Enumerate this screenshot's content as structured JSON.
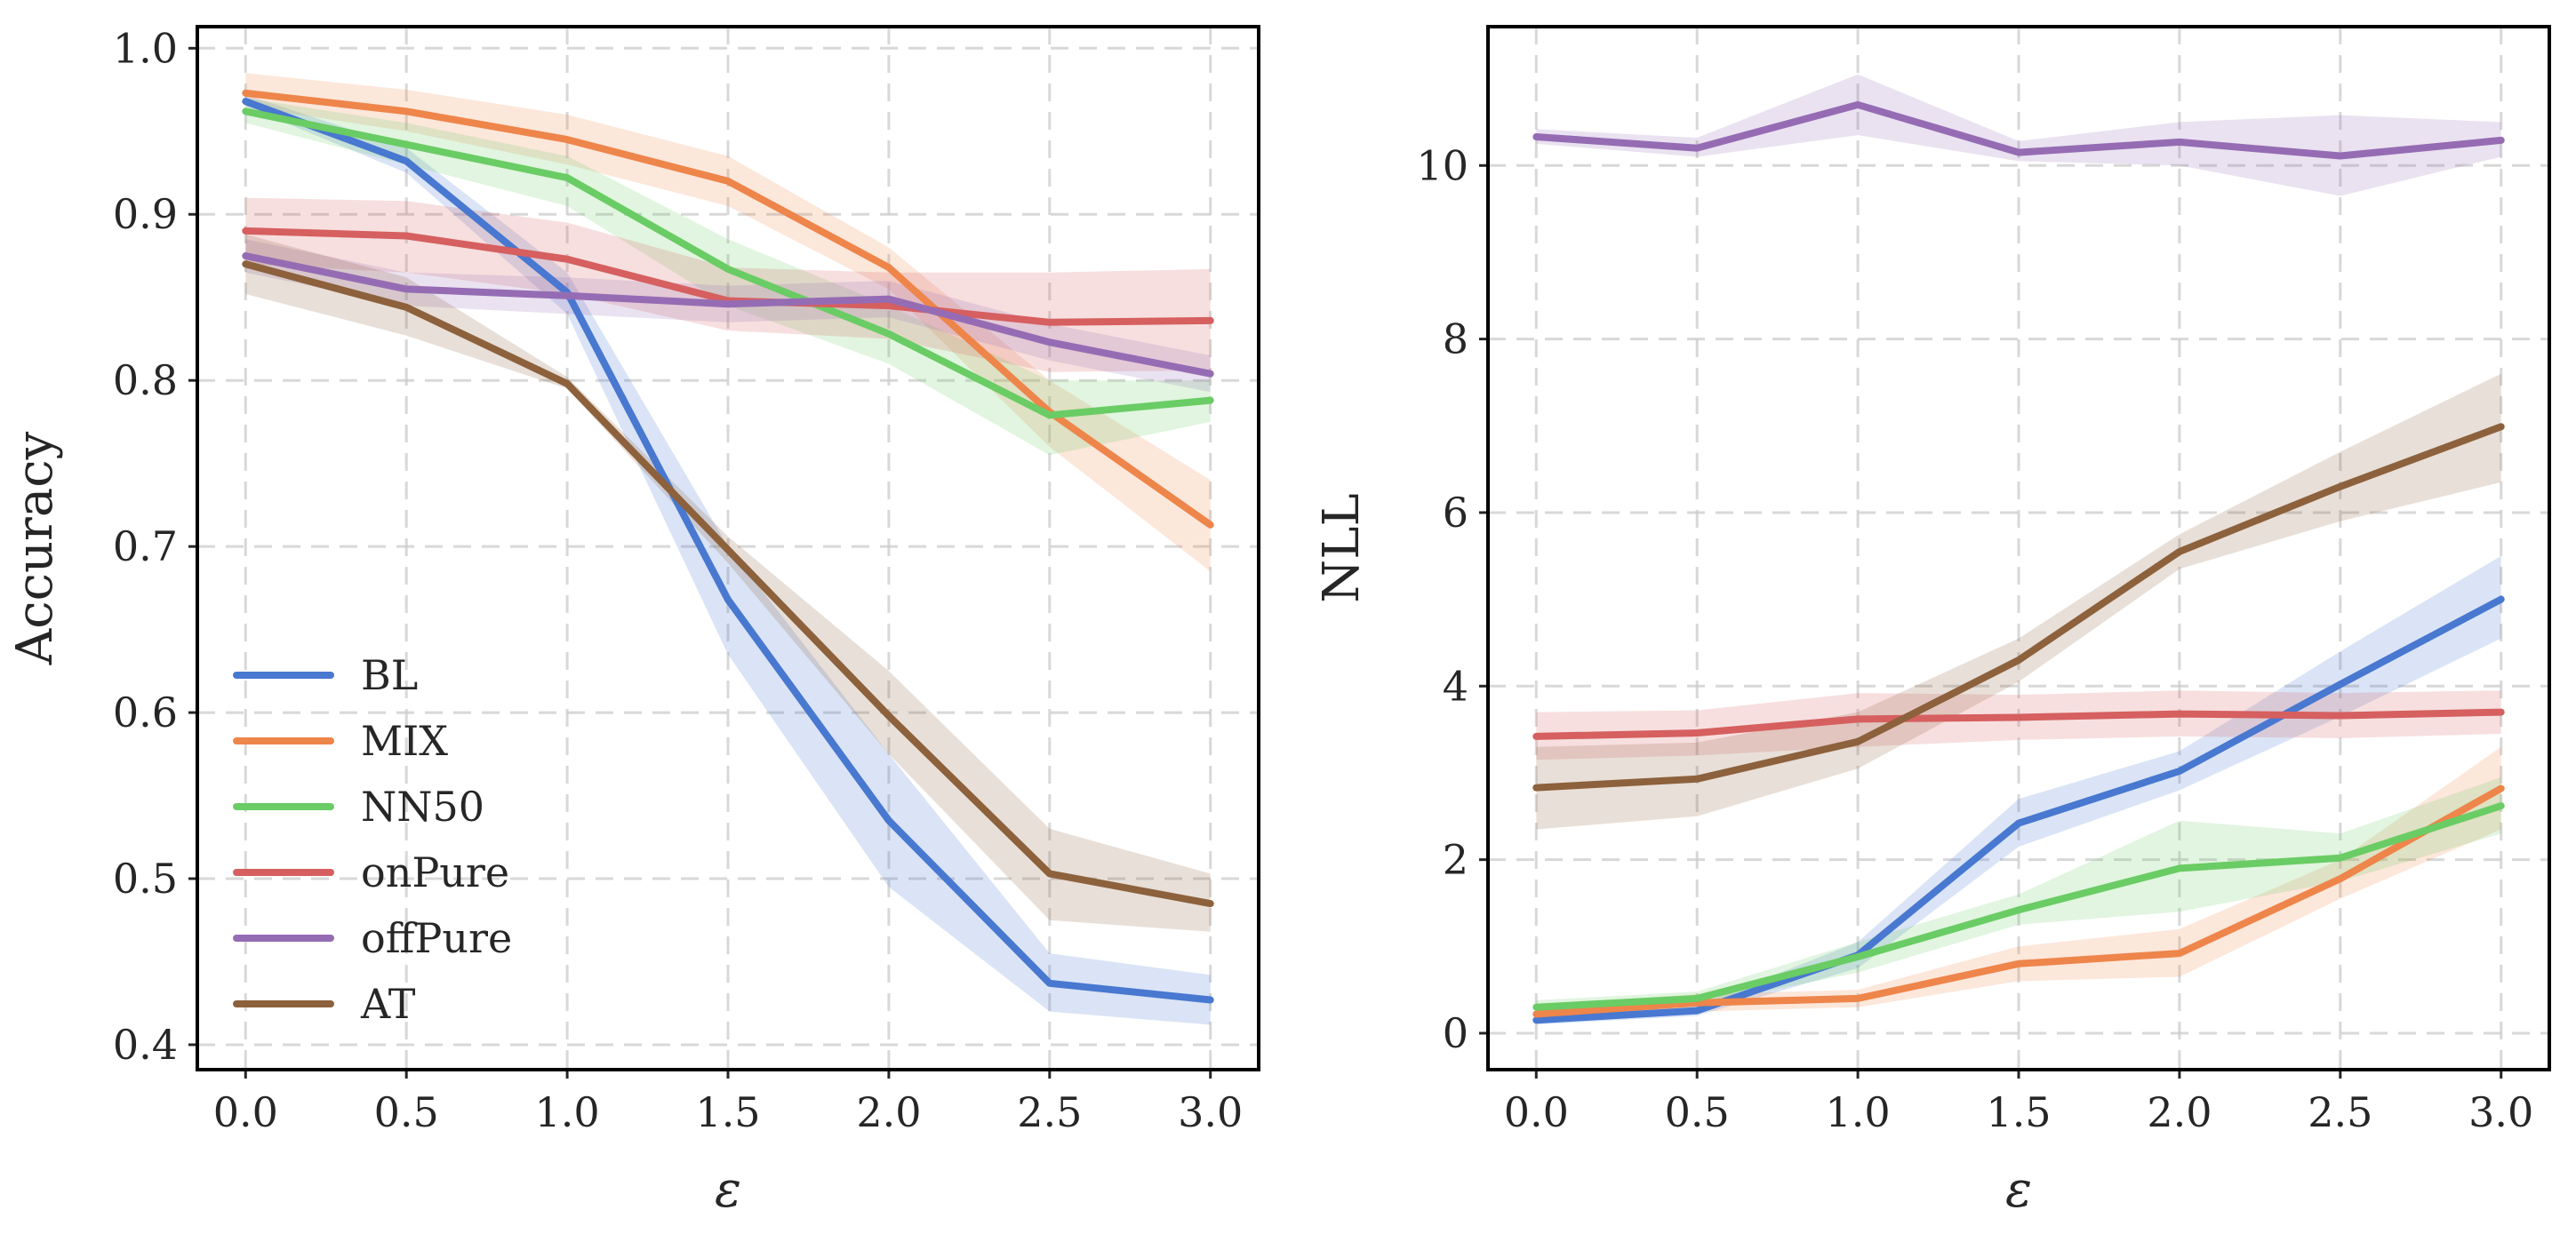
{
  "colors": {
    "BL": "#4878d0",
    "MIX": "#ee854a",
    "NN50": "#6acc64",
    "onPure": "#d65f5f",
    "offPure": "#956cb4",
    "AT": "#8c613c"
  },
  "chart_data": [
    {
      "type": "line",
      "title": "",
      "xlabel": "ε",
      "ylabel": "Accuracy",
      "x": [
        0.0,
        0.5,
        1.0,
        1.5,
        2.0,
        2.5,
        3.0
      ],
      "xticks": [
        "0.0",
        "0.5",
        "1.0",
        "1.5",
        "2.0",
        "2.5",
        "3.0"
      ],
      "yticks": [
        "0.4",
        "0.5",
        "0.6",
        "0.7",
        "0.8",
        "0.9",
        "1.0"
      ],
      "xlim": [
        -0.15,
        3.15
      ],
      "ylim": [
        0.385,
        1.013
      ],
      "grid": true,
      "legend_position": "lower-left",
      "series": [
        {
          "name": "BL",
          "values": [
            0.968,
            0.932,
            0.853,
            0.668,
            0.535,
            0.437,
            0.427
          ],
          "lower": [
            0.965,
            0.925,
            0.84,
            0.635,
            0.495,
            0.42,
            0.412
          ],
          "upper": [
            0.972,
            0.94,
            0.865,
            0.7,
            0.575,
            0.455,
            0.442
          ]
        },
        {
          "name": "MIX",
          "values": [
            0.973,
            0.962,
            0.945,
            0.92,
            0.868,
            0.781,
            0.713
          ],
          "lower": [
            0.965,
            0.95,
            0.93,
            0.905,
            0.855,
            0.76,
            0.685
          ],
          "upper": [
            0.985,
            0.975,
            0.96,
            0.935,
            0.88,
            0.8,
            0.74
          ]
        },
        {
          "name": "NN50",
          "values": [
            0.962,
            0.942,
            0.922,
            0.867,
            0.828,
            0.779,
            0.788
          ],
          "lower": [
            0.955,
            0.93,
            0.905,
            0.845,
            0.81,
            0.755,
            0.775
          ],
          "upper": [
            0.97,
            0.955,
            0.935,
            0.885,
            0.845,
            0.8,
            0.8
          ]
        },
        {
          "name": "onPure",
          "values": [
            0.89,
            0.887,
            0.873,
            0.848,
            0.845,
            0.835,
            0.836
          ],
          "lower": [
            0.87,
            0.865,
            0.852,
            0.83,
            0.825,
            0.805,
            0.806
          ],
          "upper": [
            0.91,
            0.908,
            0.895,
            0.868,
            0.865,
            0.865,
            0.867
          ]
        },
        {
          "name": "offPure",
          "values": [
            0.875,
            0.855,
            0.851,
            0.846,
            0.849,
            0.823,
            0.804
          ],
          "lower": [
            0.865,
            0.845,
            0.84,
            0.835,
            0.838,
            0.812,
            0.793
          ],
          "upper": [
            0.885,
            0.865,
            0.862,
            0.857,
            0.86,
            0.834,
            0.815
          ]
        },
        {
          "name": "AT",
          "values": [
            0.87,
            0.844,
            0.798,
            0.698,
            0.598,
            0.503,
            0.485
          ],
          "lower": [
            0.852,
            0.827,
            0.795,
            0.69,
            0.575,
            0.475,
            0.468
          ],
          "upper": [
            0.888,
            0.862,
            0.802,
            0.706,
            0.625,
            0.53,
            0.503
          ]
        }
      ]
    },
    {
      "type": "line",
      "title": "",
      "xlabel": "ε",
      "ylabel": "NLL",
      "x": [
        0.0,
        0.5,
        1.0,
        1.5,
        2.0,
        2.5,
        3.0
      ],
      "xticks": [
        "0.0",
        "0.5",
        "1.0",
        "1.5",
        "2.0",
        "2.5",
        "3.0"
      ],
      "yticks": [
        "0",
        "2",
        "4",
        "6",
        "8",
        "10"
      ],
      "xlim": [
        -0.15,
        3.15
      ],
      "ylim": [
        -0.42,
        11.6
      ],
      "grid": true,
      "series": [
        {
          "name": "BL",
          "values": [
            0.15,
            0.26,
            0.9,
            2.42,
            3.02,
            4.02,
            5.0
          ],
          "lower": [
            0.1,
            0.2,
            0.75,
            2.15,
            2.8,
            3.65,
            4.55
          ],
          "upper": [
            0.2,
            0.32,
            1.05,
            2.7,
            3.25,
            4.4,
            5.5
          ]
        },
        {
          "name": "MIX",
          "values": [
            0.22,
            0.35,
            0.4,
            0.8,
            0.92,
            1.78,
            2.82
          ],
          "lower": [
            0.12,
            0.25,
            0.3,
            0.6,
            0.65,
            1.55,
            2.35
          ],
          "upper": [
            0.32,
            0.45,
            0.5,
            1.0,
            1.2,
            2.0,
            3.3
          ]
        },
        {
          "name": "NN50",
          "values": [
            0.3,
            0.4,
            0.88,
            1.42,
            1.9,
            2.02,
            2.62
          ],
          "lower": [
            0.22,
            0.32,
            0.7,
            1.25,
            1.4,
            1.75,
            2.3
          ],
          "upper": [
            0.38,
            0.48,
            1.05,
            1.6,
            2.45,
            2.3,
            2.95
          ]
        },
        {
          "name": "onPure",
          "values": [
            3.42,
            3.46,
            3.62,
            3.64,
            3.68,
            3.66,
            3.7
          ],
          "lower": [
            3.15,
            3.2,
            3.3,
            3.38,
            3.42,
            3.4,
            3.45
          ],
          "upper": [
            3.7,
            3.72,
            3.92,
            3.9,
            3.95,
            3.92,
            3.95
          ]
        },
        {
          "name": "offPure",
          "values": [
            10.33,
            10.2,
            10.7,
            10.15,
            10.27,
            10.11,
            10.29
          ],
          "lower": [
            10.25,
            10.1,
            10.35,
            10.05,
            10.0,
            9.65,
            10.1
          ],
          "upper": [
            10.42,
            10.32,
            11.05,
            10.28,
            10.5,
            10.58,
            10.5
          ]
        },
        {
          "name": "AT",
          "values": [
            2.83,
            2.93,
            3.36,
            4.3,
            5.55,
            6.3,
            6.99
          ],
          "lower": [
            2.35,
            2.5,
            3.05,
            4.05,
            5.35,
            5.9,
            6.35
          ],
          "upper": [
            3.3,
            3.35,
            3.7,
            4.55,
            5.75,
            6.7,
            7.6
          ]
        }
      ]
    }
  ]
}
